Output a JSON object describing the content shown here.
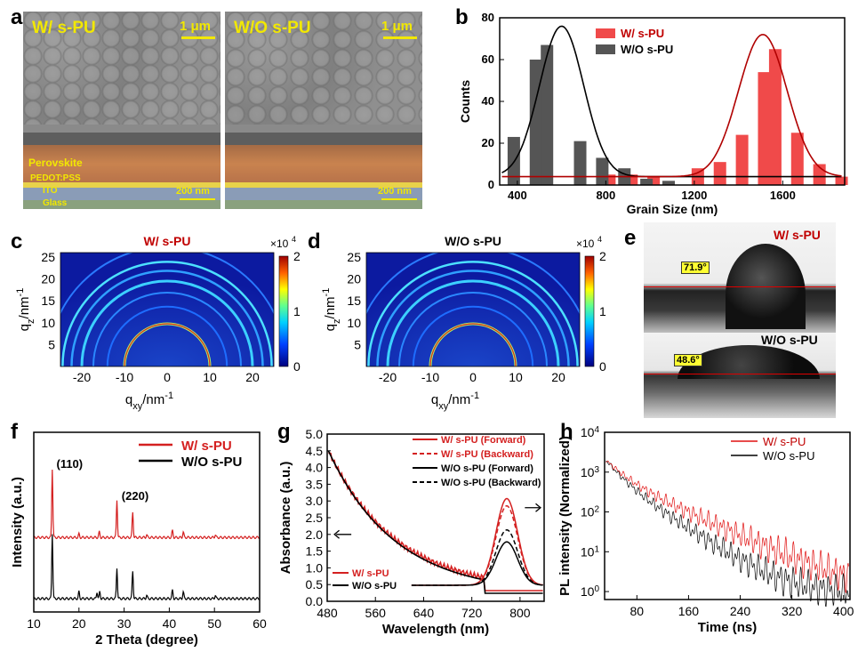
{
  "labels": {
    "a": "a",
    "b": "b",
    "c": "c",
    "d": "d",
    "e": "e",
    "f": "f",
    "g": "g",
    "h": "h"
  },
  "panel_a": {
    "left": {
      "title": "W/   s-PU",
      "scale_top": "1 μm",
      "scale_bottom": "200 nm",
      "layers": [
        "Perovskite",
        "PEDOT:PSS",
        "ITO",
        "Glass"
      ]
    },
    "right": {
      "title": "W/O  s-PU",
      "scale_top": "1 μm",
      "scale_bottom": "200 nm"
    }
  },
  "panel_e": {
    "top": {
      "title": "W/   s-PU",
      "angle": "71.9°"
    },
    "bottom": {
      "title": "W/O  s-PU",
      "angle": "48.6°"
    }
  },
  "gixd": [
    {
      "title": "W/   s-PU",
      "title_color": "#c00000",
      "xlabel": "q",
      "xlabel_sub": "xy",
      "xlabel_unit": "/nm",
      "xlabel_sup": "-1",
      "ylabel": "q",
      "ylabel_sub": "z",
      "ylabel_unit": "/nm",
      "ylabel_sup": "-1",
      "xticks": [
        "-20",
        "-10",
        "0",
        "10",
        "20"
      ],
      "yticks": [
        "5",
        "10",
        "15",
        "20",
        "25"
      ],
      "cbar_ticks": [
        "0",
        "1",
        "2"
      ],
      "cbar_mult": "×10",
      "cbar_exp": "4"
    },
    {
      "title": "W/O  s-PU",
      "title_color": "#000000",
      "xlabel": "q",
      "xlabel_sub": "xy",
      "xlabel_unit": "/nm",
      "xlabel_sup": "-1",
      "ylabel": "q",
      "ylabel_sub": "z",
      "ylabel_unit": "/nm",
      "ylabel_sup": "-1",
      "xticks": [
        "-20",
        "-10",
        "0",
        "10",
        "20"
      ],
      "yticks": [
        "5",
        "10",
        "15",
        "20",
        "25"
      ],
      "cbar_ticks": [
        "0",
        "1",
        "2"
      ],
      "cbar_mult": "×10",
      "cbar_exp": "4"
    }
  ],
  "chart_data": [
    {
      "id": "b",
      "type": "bar",
      "xlabel": "Grain Size (nm)",
      "ylabel": "Counts",
      "xlim": [
        320,
        1880
      ],
      "ylim": [
        0,
        80
      ],
      "xticks": [
        "400",
        "800",
        "1200",
        "1600"
      ],
      "yticks": [
        "0",
        "20",
        "40",
        "60",
        "80"
      ],
      "legend": "top-center",
      "series": [
        {
          "name": "W/   s-PU",
          "color": "#f04a4a",
          "x": [
            800,
            900,
            1000,
            1200,
            1300,
            1400,
            1500,
            1550,
            1650,
            1750,
            1850
          ],
          "values": [
            5,
            5,
            4,
            8,
            11,
            24,
            54,
            65,
            25,
            10,
            4
          ]
        },
        {
          "name": "W/O s-PU",
          "color": "#555555",
          "x": [
            400,
            500,
            550,
            700,
            800,
            900,
            1000,
            1100
          ],
          "values": [
            23,
            60,
            67,
            21,
            13,
            8,
            3,
            2
          ]
        }
      ],
      "fits": [
        {
          "series": "W/O s-PU",
          "color": "#000000",
          "center": 600,
          "sigma": 100,
          "amp": 72,
          "base": 4
        },
        {
          "series": "W/   s-PU",
          "color": "#b00000",
          "center": 1510,
          "sigma": 110,
          "amp": 68,
          "base": 4
        }
      ]
    },
    {
      "id": "f",
      "type": "line",
      "xlabel": "2 Theta (degree)",
      "ylabel": "Intensity (a.u.)",
      "xlim": [
        10,
        60
      ],
      "xticks": [
        "10",
        "20",
        "30",
        "40",
        "50",
        "60"
      ],
      "legend": "top-right",
      "annotations": [
        "(110)",
        "(220)"
      ],
      "annotation_x": [
        14,
        28.5
      ],
      "series": [
        {
          "name": "W/   s-PU",
          "color": "#d42020",
          "offset": 0.55,
          "peaks": [
            [
              14.1,
              1.0
            ],
            [
              20,
              0.05
            ],
            [
              24.5,
              0.08
            ],
            [
              28.4,
              0.55
            ],
            [
              31.9,
              0.37
            ],
            [
              35,
              0.04
            ],
            [
              40.7,
              0.1
            ],
            [
              43.1,
              0.08
            ],
            [
              50.2,
              0.04
            ]
          ]
        },
        {
          "name": "W/O s-PU",
          "color": "#000000",
          "offset": 0.0,
          "peaks": [
            [
              14.1,
              0.95
            ],
            [
              20,
              0.1
            ],
            [
              24,
              0.1
            ],
            [
              24.6,
              0.1
            ],
            [
              28.4,
              0.45
            ],
            [
              31.9,
              0.4
            ],
            [
              35,
              0.05
            ],
            [
              40.7,
              0.12
            ],
            [
              43.1,
              0.1
            ],
            [
              50.2,
              0.05
            ]
          ]
        }
      ]
    },
    {
      "id": "g",
      "type": "line",
      "xlabel": "Wavelength (nm)",
      "ylabel": "Absorbance (a.u.)",
      "xlim": [
        480,
        840
      ],
      "ylim": [
        0,
        5
      ],
      "xticks": [
        "480",
        "560",
        "640",
        "720",
        "800"
      ],
      "yticks": [
        "0.0",
        "0.5",
        "1.0",
        "1.5",
        "2.0",
        "2.5",
        "3.0",
        "3.5",
        "4.0",
        "4.5",
        "5.0"
      ],
      "legend": "top-right",
      "series": [
        {
          "name": "W/   s-PU (Forward)",
          "color": "#d42020",
          "dash": false,
          "kind": "pl",
          "peak": 778,
          "amp": 3.6
        },
        {
          "name": "W/   s-PU (Backward)",
          "color": "#d42020",
          "dash": true,
          "kind": "pl",
          "peak": 778,
          "amp": 3.3
        },
        {
          "name": "W/O s-PU (Forward)",
          "color": "#000000",
          "dash": false,
          "kind": "pl",
          "peak": 778,
          "amp": 1.8
        },
        {
          "name": "W/O s-PU (Backward)",
          "color": "#000000",
          "dash": true,
          "kind": "pl",
          "peak": 778,
          "amp": 2.3
        }
      ],
      "abs_legend": [
        "W/     s-PU",
        "W/O s-PU"
      ],
      "abs_series": [
        {
          "name": "W/     s-PU",
          "color": "#d42020",
          "start": 4.5,
          "end": 0.3
        },
        {
          "name": "W/O s-PU",
          "color": "#000000",
          "start": 4.5,
          "end": 0.22
        }
      ]
    },
    {
      "id": "h",
      "type": "line",
      "xlabel": "Time (ns)",
      "ylabel": "PL intensity (Normalized)",
      "xlim": [
        30,
        410
      ],
      "xticks": [
        "80",
        "160",
        "240",
        "320",
        "400"
      ],
      "ylog": true,
      "yticks_exp": [
        "0",
        "1",
        "2",
        "3",
        "4"
      ],
      "ytick_base": "10",
      "legend": "top-right",
      "series": [
        {
          "name": "W/    s-PU",
          "color": "#e01010",
          "tau1": 22,
          "tau2": 60,
          "a1": 0.6
        },
        {
          "name": "W/O  s-PU",
          "color": "#000000",
          "tau1": 18,
          "tau2": 42,
          "a1": 0.6
        }
      ]
    }
  ]
}
